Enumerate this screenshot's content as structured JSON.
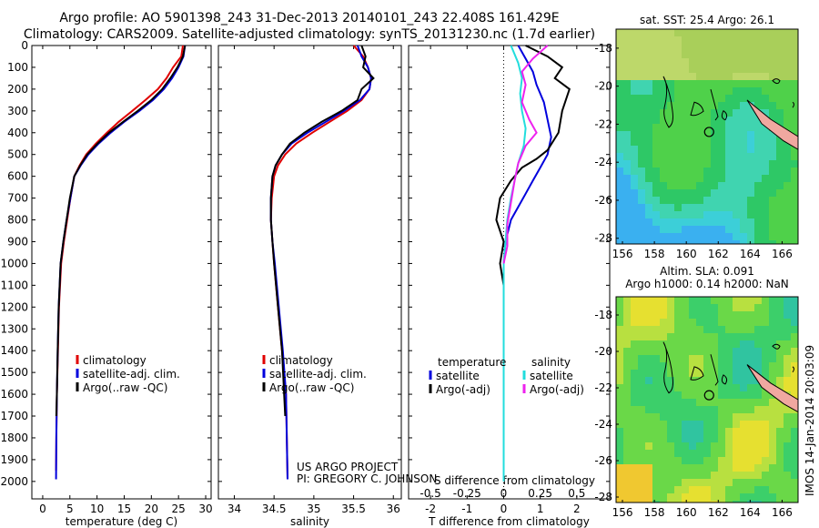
{
  "header": {
    "title1": "Argo profile: AO 5901398_243 31-Dec-2013 20140101_243 22.408S 161.429E",
    "title2": "Climatology: CARS2009. Satellite-adjusted climatology: synTS_20131230.nc (1.7d earlier)"
  },
  "colors": {
    "climatology": "#e00000",
    "satellite": "#0000dd",
    "argo": "#000000",
    "cyan": "#22dddd",
    "magenta": "#ee22ee"
  },
  "chart_data": [
    {
      "type": "line",
      "panel": "temperature",
      "xlabel": "temperature (deg C)",
      "xlim": [
        -2,
        31
      ],
      "xticks": [
        0,
        5,
        10,
        15,
        20,
        25,
        30
      ],
      "ylim": [
        2080,
        0
      ],
      "yticks": [
        0,
        100,
        200,
        300,
        400,
        500,
        600,
        700,
        800,
        900,
        1000,
        1100,
        1200,
        1300,
        1400,
        1500,
        1600,
        1700,
        1800,
        1900,
        2000
      ],
      "legend": [
        "climatology",
        "satellite-adj. clim.",
        "Argo(..raw -QC)"
      ],
      "series": [
        {
          "name": "climatology",
          "color": "#e00000",
          "x": [
            25.8,
            25.5,
            24,
            22.8,
            21.2,
            18.9,
            16.5,
            14,
            11.8,
            9.8,
            8,
            6.8,
            5.8,
            5.1,
            4.5,
            3.9,
            3.4,
            3.0,
            2.8,
            2.6,
            2.5,
            2.45
          ],
          "y": [
            0,
            50,
            100,
            150,
            200,
            250,
            300,
            350,
            400,
            450,
            500,
            550,
            600,
            700,
            800,
            900,
            1000,
            1200,
            1400,
            1600,
            1800,
            1950
          ]
        },
        {
          "name": "satellite-adj. clim.",
          "color": "#0000dd",
          "x": [
            26.2,
            25.9,
            25,
            23.8,
            22.3,
            20.3,
            17.8,
            15,
            12.5,
            10.3,
            8.4,
            7.0,
            5.8,
            5.1,
            4.4,
            3.8,
            3.3,
            2.95,
            2.75,
            2.6,
            2.5,
            2.45
          ],
          "y": [
            0,
            50,
            100,
            150,
            200,
            250,
            300,
            350,
            400,
            450,
            500,
            550,
            600,
            700,
            800,
            900,
            1000,
            1200,
            1400,
            1600,
            1800,
            1990
          ]
        },
        {
          "name": "Argo(..raw -QC)",
          "color": "#000000",
          "x": [
            26.2,
            25.8,
            24.8,
            23.5,
            22.0,
            20.0,
            17.5,
            14.8,
            12.2,
            10.1,
            8.2,
            6.9,
            5.8,
            5.0,
            4.4,
            3.8,
            3.3,
            2.95,
            2.75,
            2.6,
            2.5
          ],
          "y": [
            0,
            50,
            100,
            150,
            200,
            250,
            300,
            350,
            400,
            450,
            500,
            550,
            600,
            700,
            800,
            900,
            1000,
            1200,
            1400,
            1600,
            1700
          ]
        }
      ]
    },
    {
      "type": "line",
      "panel": "salinity",
      "xlabel": "salinity",
      "xlim": [
        33.8,
        36.1
      ],
      "xticks": [
        34,
        34.5,
        35,
        35.5,
        36
      ],
      "ylim": [
        2080,
        0
      ],
      "legend": [
        "climatology",
        "satellite-adj. clim.",
        "Argo(..raw -QC)"
      ],
      "annotations": [
        "US ARGO PROJECT",
        "PI: GREGORY C. JOHNSON"
      ],
      "series": [
        {
          "name": "climatology",
          "color": "#e00000",
          "x": [
            35.5,
            35.62,
            35.68,
            35.72,
            35.7,
            35.6,
            35.42,
            35.2,
            34.98,
            34.78,
            34.64,
            34.55,
            34.5,
            34.47,
            34.46,
            34.48,
            34.5,
            34.55,
            34.6,
            34.65,
            34.67
          ],
          "y": [
            0,
            50,
            100,
            150,
            200,
            250,
            300,
            350,
            400,
            450,
            500,
            550,
            600,
            700,
            800,
            900,
            1000,
            1200,
            1400,
            1600,
            1990
          ]
        },
        {
          "name": "satellite-adj. clim.",
          "color": "#0000dd",
          "x": [
            35.55,
            35.6,
            35.68,
            35.72,
            35.7,
            35.58,
            35.38,
            35.15,
            34.92,
            34.72,
            34.6,
            34.52,
            34.48,
            34.46,
            34.46,
            34.48,
            34.51,
            34.56,
            34.61,
            34.65,
            34.67
          ],
          "y": [
            0,
            50,
            100,
            150,
            200,
            250,
            300,
            350,
            400,
            450,
            500,
            550,
            600,
            700,
            800,
            900,
            1000,
            1200,
            1400,
            1600,
            1990
          ]
        },
        {
          "name": "Argo(..raw -QC)",
          "color": "#000000",
          "x": [
            35.6,
            35.65,
            35.62,
            35.75,
            35.6,
            35.55,
            35.35,
            35.1,
            34.88,
            34.7,
            34.6,
            34.52,
            34.48,
            34.46,
            34.46,
            34.48,
            34.5,
            34.55,
            34.6,
            34.64
          ],
          "y": [
            0,
            50,
            100,
            150,
            200,
            250,
            300,
            350,
            400,
            450,
            500,
            550,
            600,
            700,
            800,
            900,
            1000,
            1200,
            1400,
            1700
          ]
        }
      ]
    },
    {
      "type": "line",
      "panel": "difference",
      "xlabel": "T difference from climatology",
      "x2label": "S difference from climatology",
      "xlim": [
        -2.6,
        2.9
      ],
      "xticks": [
        -2,
        -1,
        0,
        1,
        2
      ],
      "x2ticklabels": [
        "-0.5",
        "-0.25",
        "0",
        "0.25",
        "0.5"
      ],
      "ylim": [
        2080,
        0
      ],
      "legend": [
        "temperature",
        "satellite",
        "Argo(-adj)",
        "salinity",
        "satellite",
        "Argo(-adj)"
      ],
      "series": [
        {
          "name": "temperature satellite",
          "color": "#0000dd",
          "x": [
            0.4,
            0.6,
            0.8,
            0.9,
            1.1,
            1.2,
            1.3,
            1.2,
            1.0,
            0.8,
            0.6,
            0.4,
            0.2,
            0.05,
            0
          ],
          "y": [
            0,
            60,
            120,
            180,
            260,
            340,
            420,
            500,
            560,
            620,
            680,
            740,
            800,
            900,
            1000
          ]
        },
        {
          "name": "temperature Argo(-adj)",
          "color": "#000000",
          "x": [
            0.6,
            1.2,
            1.6,
            1.4,
            1.8,
            1.6,
            1.5,
            1.2,
            0.9,
            0.5,
            0.2,
            -0.1,
            -0.2,
            0.0,
            -0.1,
            0
          ],
          "y": [
            0,
            50,
            100,
            150,
            200,
            300,
            400,
            480,
            520,
            560,
            620,
            700,
            800,
            900,
            1000,
            1100
          ]
        },
        {
          "name": "salinity satellite",
          "color": "#22dddd",
          "x": [
            0.2,
            0.4,
            0.5,
            0.45,
            0.5,
            0.6,
            0.55,
            0.4,
            0.3,
            0.2,
            0.1,
            0.05,
            0.0,
            0.0,
            0.0
          ],
          "y": [
            0,
            80,
            150,
            220,
            300,
            380,
            460,
            540,
            620,
            700,
            800,
            900,
            1000,
            1500,
            2000
          ]
        },
        {
          "name": "salinity Argo(-adj)",
          "color": "#ee22ee",
          "x": [
            1.2,
            0.8,
            0.5,
            0.6,
            0.5,
            0.7,
            0.9,
            0.6,
            0.4,
            0.3,
            0.2,
            0.1,
            0.1,
            0.0
          ],
          "y": [
            0,
            60,
            120,
            180,
            260,
            340,
            400,
            460,
            540,
            620,
            720,
            820,
            920,
            1000
          ]
        }
      ]
    }
  ],
  "maps": {
    "sst_title": "sat. SST: 25.4 Argo: 26.1",
    "sla_title1": "Altim. SLA: 0.091",
    "sla_title2": "Argo h1000: 0.14 h2000: NaN",
    "yticks": [
      "-18",
      "-20",
      "-22",
      "-24",
      "-26",
      "-28"
    ],
    "xticks": [
      "156",
      "158",
      "160",
      "162",
      "164",
      "166"
    ]
  },
  "credit": "IMOS 14-Jan-2014 20:03:09"
}
